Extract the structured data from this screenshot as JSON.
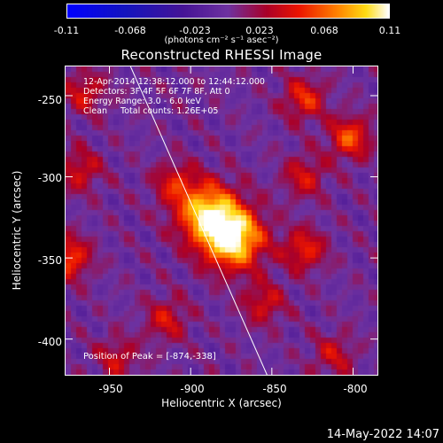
{
  "colorbar": {
    "ticks": [
      "-0.11",
      "-0.068",
      "-0.023",
      "0.023",
      "0.068",
      "0.11"
    ],
    "tick_values": [
      -0.11,
      -0.068,
      -0.023,
      0.023,
      0.068,
      0.11
    ],
    "units": "(photons cm⁻² s⁻¹ asec⁻²)"
  },
  "chart_data": {
    "type": "heatmap",
    "title": "Reconstructed RHESSI Image",
    "xlabel": "Heliocentric X (arcsec)",
    "ylabel": "Heliocentric Y (arcsec)",
    "xlim": [
      -977,
      -785
    ],
    "ylim": [
      -422,
      -232
    ],
    "xticks": [
      -950,
      -900,
      -850,
      -800
    ],
    "yticks": [
      -250,
      -300,
      -350,
      -400
    ],
    "value_range": [
      -0.11,
      0.11
    ],
    "peak": [
      -874,
      -338
    ],
    "limb_line": [
      [
        -937,
        -232
      ],
      [
        -853,
        -422
      ]
    ],
    "blobs": [
      {
        "x": -874,
        "y": -338,
        "value": 0.11
      },
      {
        "x": -890,
        "y": -322,
        "value": 0.09
      },
      {
        "x": -910,
        "y": -304,
        "value": 0.04
      },
      {
        "x": -802,
        "y": -276,
        "value": 0.06
      },
      {
        "x": -830,
        "y": -252,
        "value": 0.05
      },
      {
        "x": -830,
        "y": -300,
        "value": 0.04
      },
      {
        "x": -830,
        "y": -345,
        "value": 0.05
      },
      {
        "x": -855,
        "y": -378,
        "value": 0.04
      },
      {
        "x": -975,
        "y": -350,
        "value": 0.06
      },
      {
        "x": -968,
        "y": -296,
        "value": 0.04
      },
      {
        "x": -965,
        "y": -248,
        "value": 0.04
      },
      {
        "x": -945,
        "y": -412,
        "value": 0.035
      },
      {
        "x": -915,
        "y": -388,
        "value": 0.04
      },
      {
        "x": -812,
        "y": -410,
        "value": 0.035
      }
    ]
  },
  "annotations": [
    "12-Apr-2014 12:38:12.000 to 12:44:12.000",
    "Detectors: 3F 4F 5F 6F 7F 8F, Att 0",
    "Energy Range: 3.0 - 6.0 keV",
    "Clean     Total counts: 1.26E+05"
  ],
  "peak_label": "Position of Peak = [-874,-338]",
  "y_ticks": [
    "-250",
    "-300",
    "-350",
    "-400"
  ],
  "x_ticks": [
    "-950",
    "-900",
    "-850",
    "-800"
  ],
  "date_stamp": "14-May-2022 14:07"
}
